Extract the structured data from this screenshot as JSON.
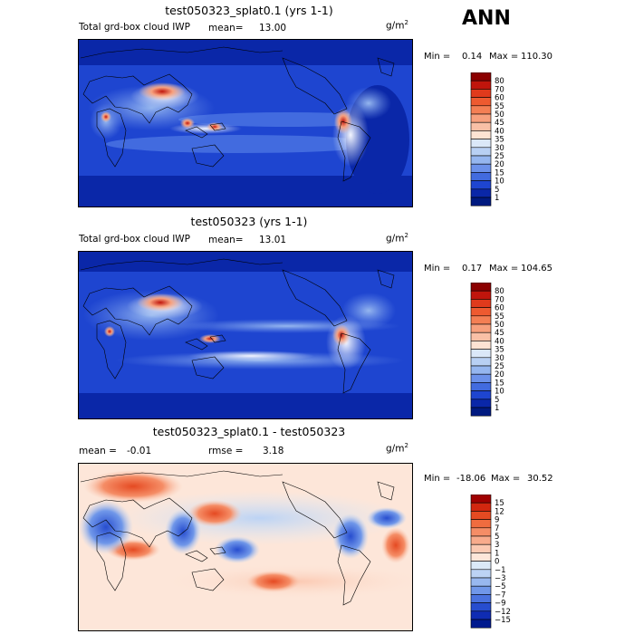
{
  "season": "ANN",
  "units_base": "g/m",
  "units_exp": "2",
  "chart_data": [
    {
      "type": "heatmap",
      "title": "test050323_splat0.1 (yrs 1-1)",
      "subtitle_left": "Total grd-box cloud IWP",
      "stat1_label": "mean=",
      "stat1_value": "13.00",
      "min_text": "Min =",
      "min_value": "0.14",
      "max_text": "Max =",
      "max_value": "110.30",
      "colorbar_levels": [
        "80",
        "70",
        "60",
        "55",
        "50",
        "45",
        "40",
        "35",
        "30",
        "25",
        "20",
        "15",
        "10",
        "5",
        "1"
      ],
      "colorbar_colors": [
        "#8b0000",
        "#c0150c",
        "#e03a1c",
        "#ee5a30",
        "#f47f54",
        "#f7a07d",
        "#f9c0a6",
        "#fde3d3",
        "#dbe8f8",
        "#b8d0f3",
        "#95b6ef",
        "#6c91ea",
        "#426bdf",
        "#1e45d0",
        "#0a27a8",
        "#001a80"
      ]
    },
    {
      "type": "heatmap",
      "title": "test050323 (yrs 1-1)",
      "subtitle_left": "Total grd-box cloud IWP",
      "stat1_label": "mean=",
      "stat1_value": "13.01",
      "min_text": "Min =",
      "min_value": "0.17",
      "max_text": "Max =",
      "max_value": "104.65",
      "colorbar_levels": [
        "80",
        "70",
        "60",
        "55",
        "50",
        "45",
        "40",
        "35",
        "30",
        "25",
        "20",
        "15",
        "10",
        "5",
        "1"
      ],
      "colorbar_colors": [
        "#8b0000",
        "#c0150c",
        "#e03a1c",
        "#ee5a30",
        "#f47f54",
        "#f7a07d",
        "#f9c0a6",
        "#fde3d3",
        "#dbe8f8",
        "#b8d0f3",
        "#95b6ef",
        "#6c91ea",
        "#426bdf",
        "#1e45d0",
        "#0a27a8",
        "#001a80"
      ]
    },
    {
      "type": "heatmap",
      "title": "test050323_splat0.1 - test050323",
      "stat1_label": "mean =",
      "stat1_value": "-0.01",
      "stat2_label": "rmse =",
      "stat2_value": "3.18",
      "min_text": "Min =",
      "min_value": "-18.06",
      "max_text": "Max =",
      "max_value": "30.52",
      "colorbar_levels": [
        "15",
        "12",
        "9",
        "7",
        "5",
        "3",
        "1",
        "0",
        "-1",
        "-3",
        "-5",
        "-7",
        "-9",
        "-12",
        "-15"
      ],
      "colorbar_colors": [
        "#a00000",
        "#d2270f",
        "#e54a22",
        "#f06c3f",
        "#f58d66",
        "#f8ab8c",
        "#fbc9b2",
        "#fde6d9",
        "#dbe9f8",
        "#bcd3f4",
        "#98b8ef",
        "#7097e9",
        "#4a72df",
        "#274dcf",
        "#0f2cb3",
        "#001a8e"
      ]
    }
  ]
}
